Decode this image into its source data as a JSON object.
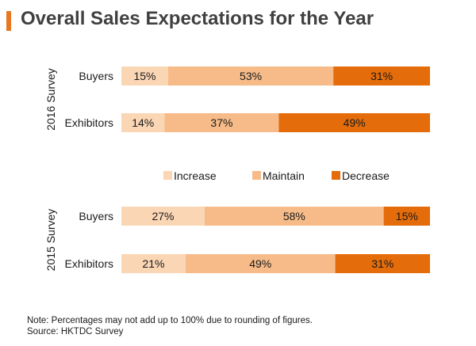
{
  "title": "Overall Sales Expectations for the Year",
  "colors": {
    "accent": "#E87722",
    "increase": "#FBD6B5",
    "maintain": "#F6BB88",
    "decrease": "#E46C0A"
  },
  "chart_data": {
    "type": "bar",
    "orientation": "horizontal",
    "stacked": true,
    "grid": false,
    "legend_position": "center",
    "xlim": [
      0,
      100
    ],
    "unit": "%",
    "legend": [
      "Increase",
      "Maintain",
      "Decrease"
    ],
    "groups": [
      {
        "name": "2016 Survey",
        "rows": [
          {
            "label": "Buyers",
            "values": [
              15,
              53,
              31
            ]
          },
          {
            "label": "Exhibitors",
            "values": [
              14,
              37,
              49
            ]
          }
        ]
      },
      {
        "name": "2015 Survey",
        "rows": [
          {
            "label": "Buyers",
            "values": [
              27,
              58,
              15
            ]
          },
          {
            "label": "Exhibitors",
            "values": [
              21,
              49,
              31
            ]
          }
        ]
      }
    ]
  },
  "notes": {
    "note": "Note: Percentages may not add up to 100% due to rounding of figures.",
    "source": "Source: HKTDC Survey"
  }
}
